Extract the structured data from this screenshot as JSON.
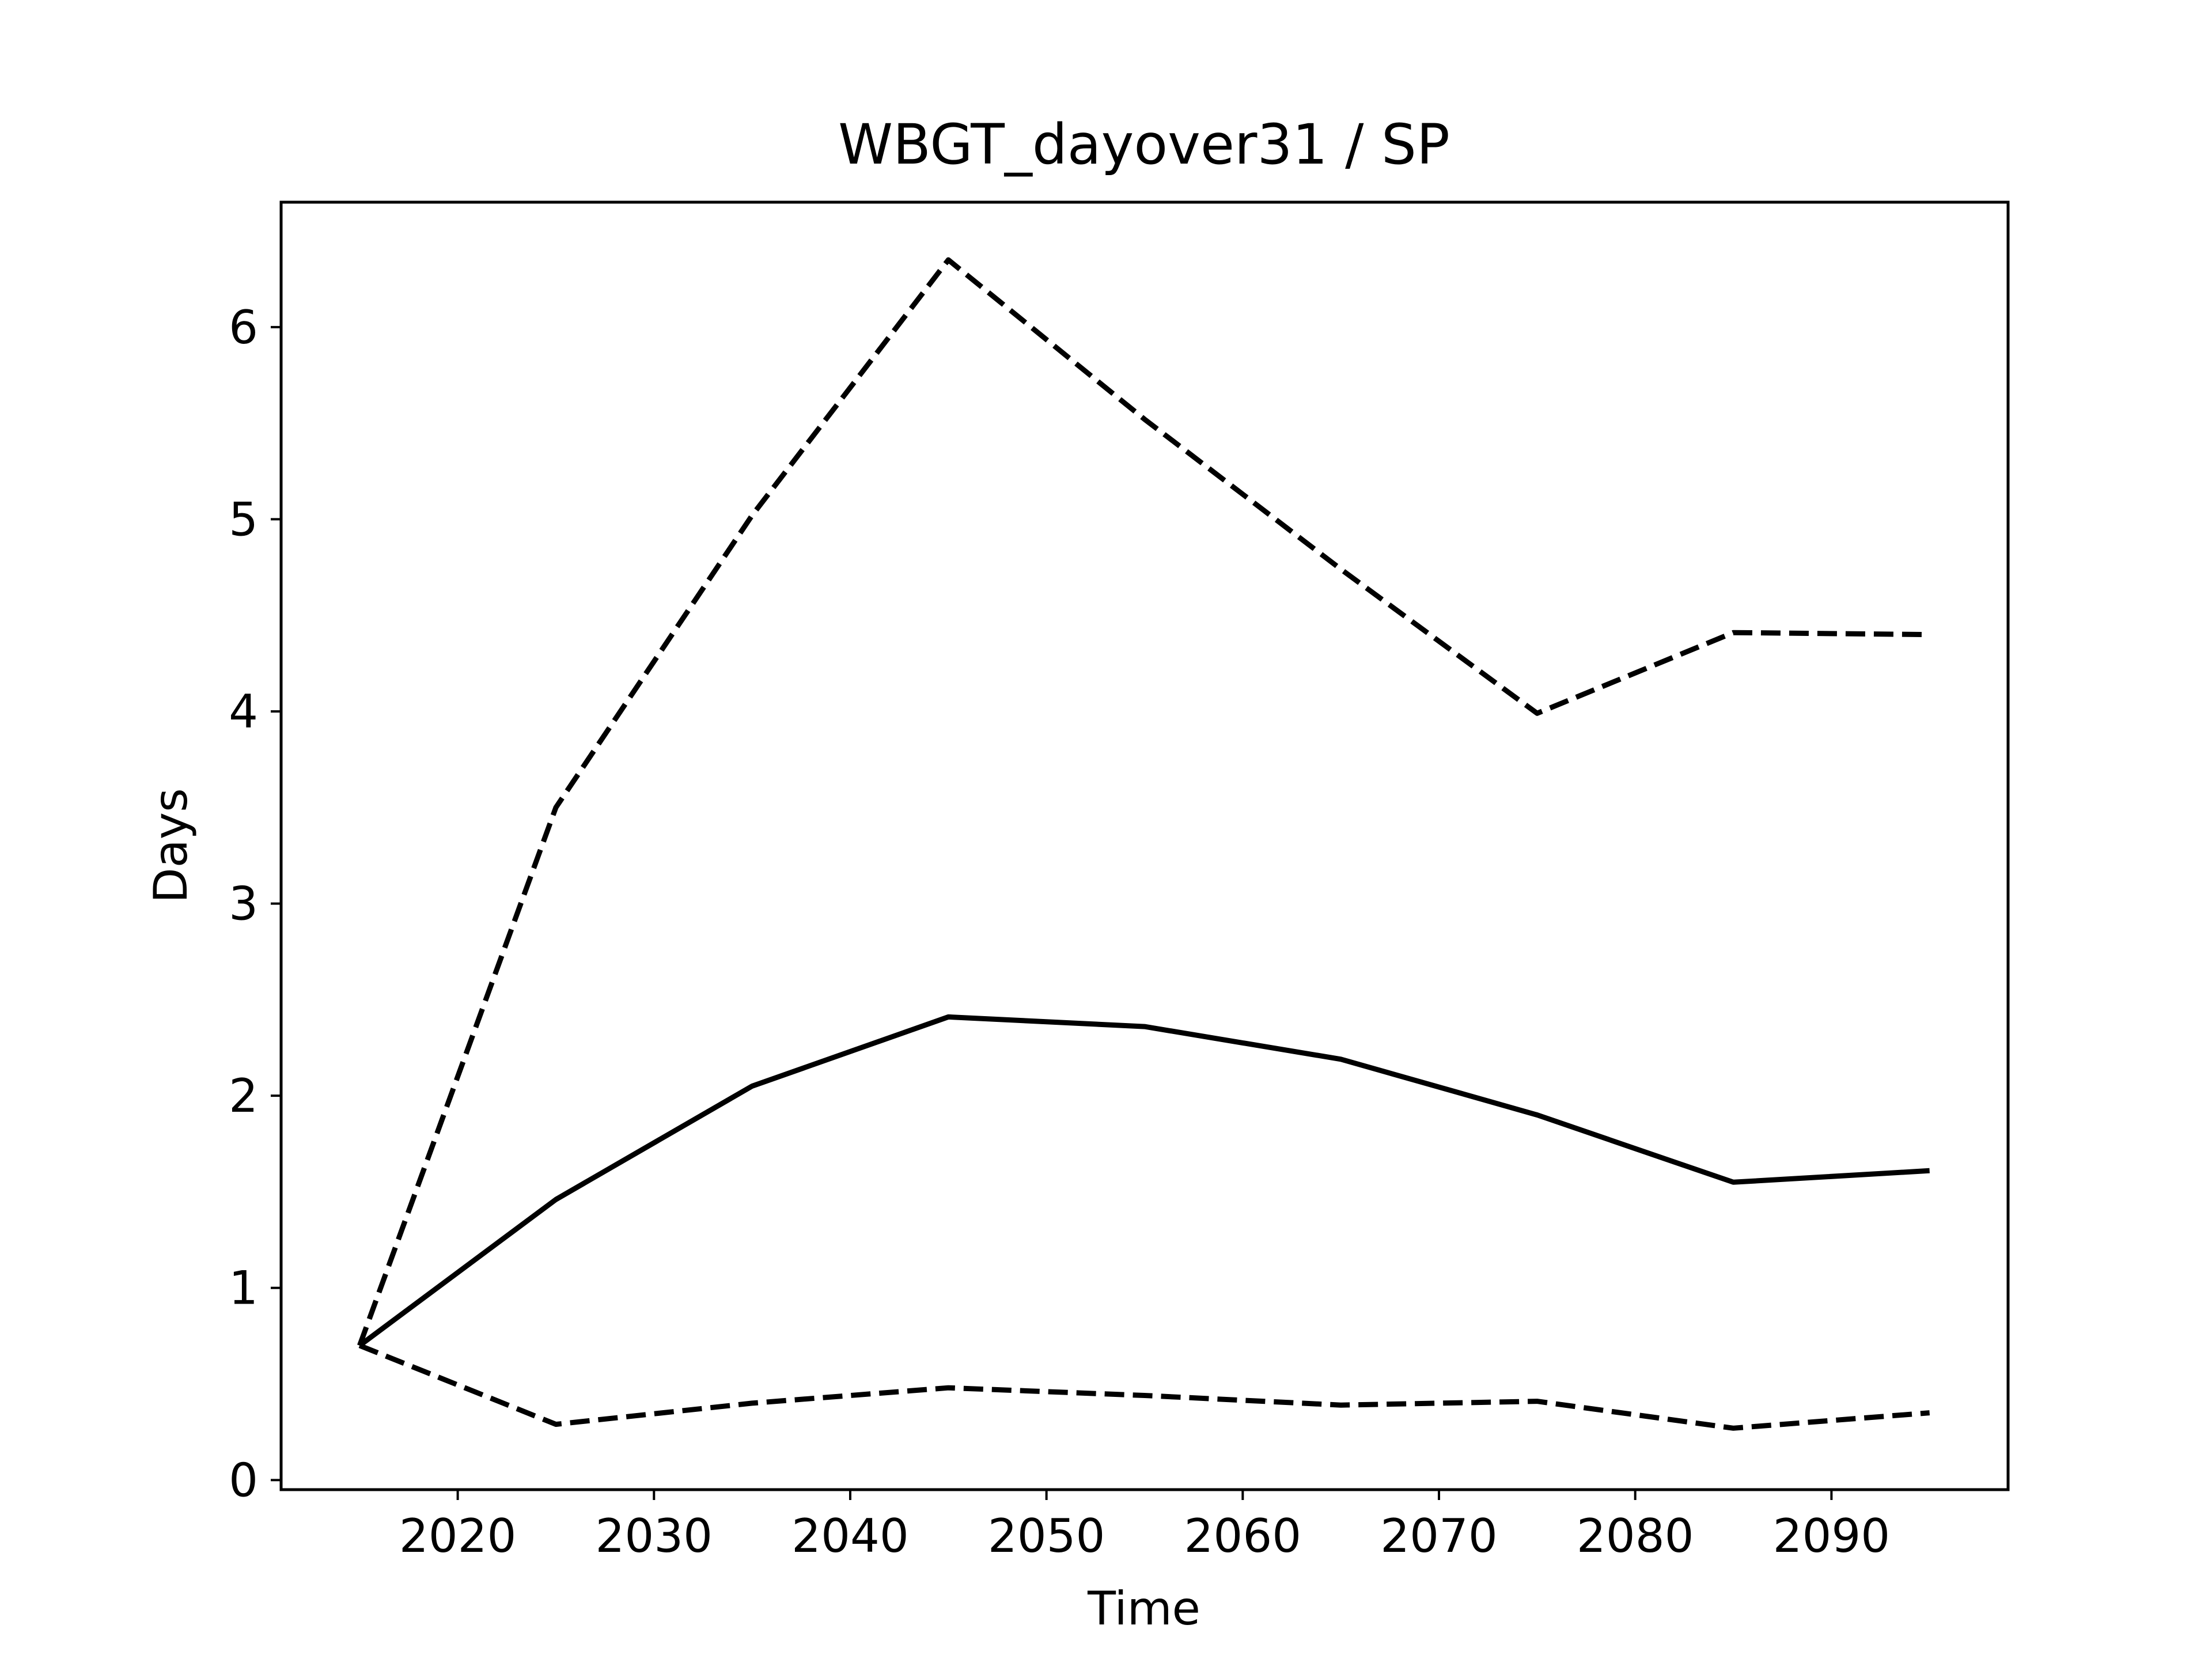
{
  "chart_data": {
    "type": "line",
    "title": "WBGT_dayover31 / SP",
    "xlabel": "Time",
    "ylabel": "Days",
    "xlim": [
      2011,
      2099
    ],
    "ylim": [
      -0.05,
      6.65
    ],
    "x_ticks": [
      2020,
      2030,
      2040,
      2050,
      2060,
      2070,
      2080,
      2090
    ],
    "y_ticks": [
      0,
      1,
      2,
      3,
      4,
      5,
      6
    ],
    "grid": false,
    "x": [
      2015,
      2025,
      2035,
      2045,
      2055,
      2065,
      2075,
      2085,
      2095
    ],
    "series": [
      {
        "style": "dashed",
        "color": "#000000",
        "values": [
          0.7,
          3.5,
          5.02,
          6.35,
          5.52,
          4.74,
          3.99,
          4.41,
          4.4
        ]
      },
      {
        "style": "solid",
        "color": "#000000",
        "values": [
          0.7,
          1.46,
          2.05,
          2.41,
          2.36,
          2.19,
          1.9,
          1.55,
          1.61
        ]
      },
      {
        "style": "dashed",
        "color": "#000000",
        "values": [
          0.7,
          0.29,
          0.4,
          0.48,
          0.44,
          0.39,
          0.41,
          0.27,
          0.35
        ]
      }
    ]
  }
}
